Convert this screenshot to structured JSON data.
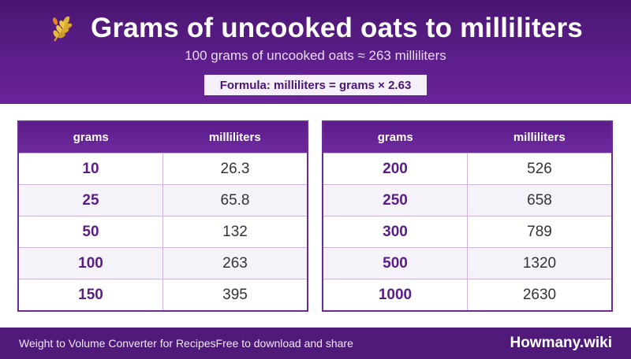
{
  "header": {
    "title": "Grams of uncooked oats to milliliters",
    "subtitle": "100 grams of uncooked oats ≈ 263 milliliters",
    "formula": "Formula: milliliters = grams × 2.63",
    "icon": "wheat-icon"
  },
  "tables": {
    "left": {
      "col_grams": "grams",
      "col_ml": "milliliters",
      "rows": [
        {
          "grams": "10",
          "ml": "26.3"
        },
        {
          "grams": "25",
          "ml": "65.8"
        },
        {
          "grams": "50",
          "ml": "132"
        },
        {
          "grams": "100",
          "ml": "263"
        },
        {
          "grams": "150",
          "ml": "395"
        }
      ]
    },
    "right": {
      "col_grams": "grams",
      "col_ml": "milliliters",
      "rows": [
        {
          "grams": "200",
          "ml": "526"
        },
        {
          "grams": "250",
          "ml": "658"
        },
        {
          "grams": "300",
          "ml": "789"
        },
        {
          "grams": "500",
          "ml": "1320"
        },
        {
          "grams": "1000",
          "ml": "2630"
        }
      ]
    }
  },
  "footer": {
    "left_text": "Weight to Volume Converter for RecipesFree to download and share",
    "brand": "Howmany.wiki"
  },
  "colors": {
    "header_bg": "#5e1f8c",
    "accent": "#6b2a97",
    "footer_bg": "#4f1a79"
  }
}
